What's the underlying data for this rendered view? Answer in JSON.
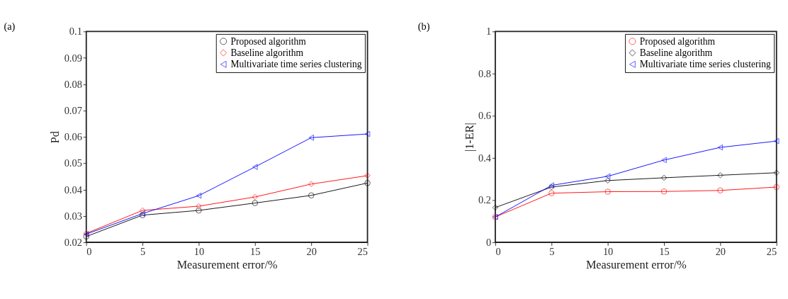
{
  "chart_data": [
    {
      "type": "line",
      "title": "(a)",
      "xlabel": "Measurement error/%",
      "ylabel": "Pd",
      "x": [
        0,
        5,
        10,
        15,
        20,
        25
      ],
      "xlim": [
        0,
        25
      ],
      "xticks": [
        0,
        5,
        10,
        15,
        20,
        25
      ],
      "ylim": [
        0.02,
        0.1
      ],
      "yticks": [
        0.02,
        0.03,
        0.04,
        0.05,
        0.06,
        0.07,
        0.08,
        0.09,
        {
          "value": 0.1,
          "label": "0.1"
        }
      ],
      "grid": false,
      "legend": "top right",
      "line_style": "solid",
      "series": [
        {
          "name": "Proposed algorithm",
          "color": "#000000",
          "marker": "circle",
          "values": [
            0.0222,
            0.0303,
            0.0321,
            0.0349,
            0.0378,
            0.0425
          ]
        },
        {
          "name": "Baseline algorithm",
          "color": "#ff0000",
          "marker": "diamond",
          "values": [
            0.0234,
            0.0321,
            0.0337,
            0.0372,
            0.0421,
            0.0453
          ]
        },
        {
          "name": "Multivariate time series clustering",
          "color": "#0000ff",
          "marker": "triangle",
          "values": [
            0.0231,
            0.0309,
            0.0377,
            0.0486,
            0.0597,
            0.0611
          ]
        }
      ]
    },
    {
      "type": "line",
      "title": "(b)",
      "xlabel": "Measurement error/%",
      "ylabel": "|1-ER|",
      "x": [
        0,
        5,
        10,
        15,
        20,
        25
      ],
      "xlim": [
        0,
        25
      ],
      "xticks": [
        0,
        5,
        10,
        15,
        20,
        25
      ],
      "ylim": [
        0,
        1
      ],
      "yticks": [
        {
          "value": 0,
          "label": "0"
        },
        0.2,
        0.4,
        0.6,
        0.8,
        {
          "value": 1,
          "label": "1"
        }
      ],
      "grid": false,
      "legend": "top right",
      "line_style": "solid",
      "series": [
        {
          "name": "Proposed algorithm",
          "color": "#ff0000",
          "marker": "circle",
          "values": [
            0.12,
            0.233,
            0.24,
            0.241,
            0.246,
            0.262
          ]
        },
        {
          "name": "Baseline algorithm",
          "color": "#000000",
          "marker": "diamond",
          "values": [
            0.165,
            0.262,
            0.293,
            0.306,
            0.318,
            0.33
          ]
        },
        {
          "name": "Multivariate time series clustering",
          "color": "#0000ff",
          "marker": "triangle",
          "values": [
            0.12,
            0.27,
            0.313,
            0.39,
            0.45,
            0.48
          ]
        }
      ]
    }
  ]
}
